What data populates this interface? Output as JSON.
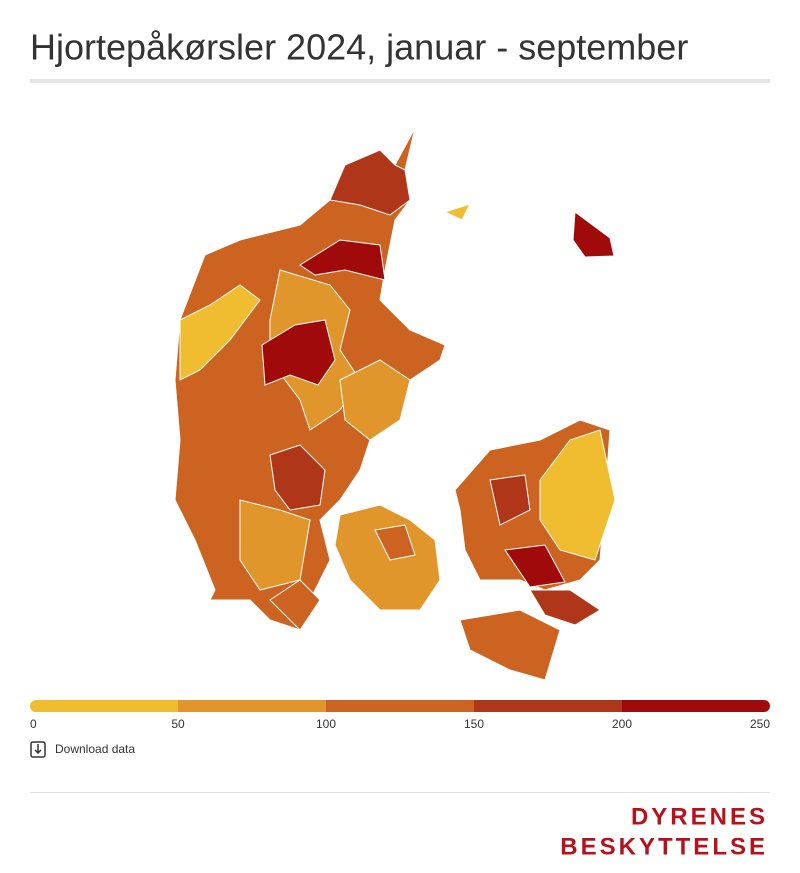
{
  "title": "Hjortepåkørsler 2024, januar - september",
  "legend": {
    "ticks": [
      0,
      50,
      100,
      150,
      200,
      250
    ],
    "colors": [
      "#f0bd30",
      "#e0962a",
      "#cc6320",
      "#b0361a",
      "#a00a0a"
    ]
  },
  "download": "Download data",
  "brand": [
    "DYRENES",
    "BESKYTTELSE"
  ]
}
